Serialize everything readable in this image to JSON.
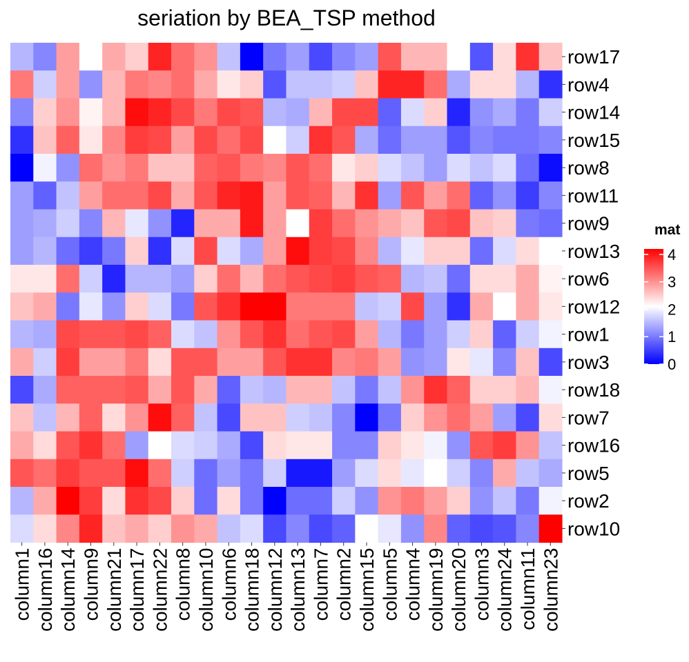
{
  "chart_data": {
    "type": "heatmap",
    "title": "seriation by BEA_TSP method",
    "columns": [
      "column1",
      "column16",
      "column14",
      "column9",
      "column21",
      "column17",
      "column22",
      "column8",
      "column10",
      "column6",
      "column18",
      "column12",
      "column13",
      "column7",
      "column2",
      "column15",
      "column5",
      "column4",
      "column19",
      "column20",
      "column3",
      "column24",
      "column11",
      "column23"
    ],
    "rows": [
      "row17",
      "row4",
      "row14",
      "row15",
      "row8",
      "row11",
      "row9",
      "row13",
      "row6",
      "row12",
      "row1",
      "row3",
      "row18",
      "row7",
      "row16",
      "row5",
      "row2",
      "row10"
    ],
    "values": [
      [
        1.5,
        1.1,
        2.9,
        2.1,
        2.8,
        2.5,
        3.9,
        3.3,
        3.0,
        1.6,
        0.0,
        1.0,
        1.3,
        0.6,
        1.1,
        1.3,
        3.5,
        2.7,
        2.7,
        2.1,
        0.7,
        2.4,
        3.8,
        2.6
      ],
      [
        3.2,
        1.7,
        2.9,
        1.2,
        2.7,
        3.2,
        3.1,
        3.3,
        2.8,
        2.3,
        2.5,
        0.7,
        1.6,
        1.6,
        1.7,
        2.6,
        3.9,
        3.9,
        3.3,
        1.4,
        2.4,
        2.4,
        1.5,
        0.4
      ],
      [
        1.1,
        2.5,
        3.0,
        2.2,
        2.7,
        4.1,
        3.9,
        3.6,
        3.2,
        3.6,
        3.5,
        1.5,
        1.4,
        2.7,
        3.6,
        3.6,
        0.8,
        1.8,
        2.5,
        0.3,
        1.2,
        1.4,
        1.0,
        1.7
      ],
      [
        0.4,
        2.6,
        3.4,
        2.3,
        3.1,
        3.7,
        3.6,
        2.9,
        3.6,
        3.3,
        3.6,
        2.1,
        1.7,
        3.8,
        3.5,
        1.4,
        0.9,
        1.3,
        1.3,
        0.7,
        1.1,
        1.0,
        1.0,
        1.1
      ],
      [
        0.0,
        2.0,
        1.2,
        3.3,
        3.0,
        3.2,
        2.6,
        2.6,
        3.4,
        3.5,
        3.2,
        3.1,
        3.5,
        3.3,
        2.3,
        2.5,
        1.8,
        1.6,
        1.3,
        1.8,
        1.6,
        1.8,
        0.9,
        0.1
      ],
      [
        1.3,
        0.8,
        1.6,
        2.9,
        3.3,
        3.3,
        3.6,
        2.8,
        3.5,
        3.9,
        4.0,
        2.9,
        3.5,
        3.4,
        2.7,
        3.8,
        1.3,
        3.5,
        2.9,
        3.3,
        0.8,
        1.2,
        0.5,
        1.1
      ],
      [
        1.3,
        1.4,
        1.7,
        1.1,
        2.7,
        1.9,
        1.2,
        0.3,
        2.8,
        2.8,
        4.0,
        2.9,
        2.1,
        3.7,
        3.3,
        3.0,
        2.8,
        2.6,
        3.5,
        3.6,
        2.6,
        2.5,
        1.0,
        0.9
      ],
      [
        1.3,
        1.5,
        0.9,
        0.5,
        1.0,
        2.5,
        0.4,
        1.8,
        3.6,
        1.8,
        1.4,
        2.9,
        4.1,
        3.7,
        3.6,
        3.1,
        1.5,
        1.9,
        2.5,
        2.5,
        0.9,
        1.8,
        2.4,
        2.1
      ],
      [
        2.3,
        2.3,
        3.3,
        1.7,
        0.3,
        1.5,
        1.5,
        1.3,
        2.5,
        3.3,
        2.7,
        3.3,
        3.5,
        3.6,
        3.7,
        3.5,
        3.4,
        1.5,
        1.6,
        0.9,
        2.4,
        2.4,
        2.8,
        2.2
      ],
      [
        2.6,
        2.8,
        1.0,
        1.9,
        1.2,
        2.5,
        1.8,
        1.0,
        3.5,
        3.8,
        4.2,
        4.2,
        3.2,
        3.2,
        3.2,
        1.6,
        1.7,
        3.6,
        1.3,
        0.4,
        2.8,
        2.1,
        2.8,
        2.3
      ],
      [
        1.5,
        1.4,
        3.6,
        3.5,
        3.5,
        3.6,
        3.4,
        1.8,
        1.6,
        3.0,
        3.5,
        3.8,
        3.3,
        3.5,
        3.6,
        2.9,
        1.5,
        1.0,
        1.3,
        1.7,
        2.5,
        0.8,
        1.7,
        2.0
      ],
      [
        2.8,
        1.7,
        3.7,
        2.9,
        2.9,
        3.2,
        2.4,
        3.5,
        3.5,
        2.9,
        2.9,
        3.5,
        3.8,
        3.8,
        3.1,
        3.2,
        2.9,
        1.2,
        1.3,
        2.3,
        1.9,
        1.1,
        2.6,
        0.6
      ],
      [
        0.6,
        1.4,
        3.4,
        3.4,
        3.4,
        3.5,
        2.8,
        3.5,
        2.8,
        0.8,
        1.6,
        1.5,
        2.7,
        2.7,
        1.6,
        1.0,
        1.6,
        3.0,
        3.8,
        3.4,
        2.5,
        2.5,
        2.7,
        2.0
      ],
      [
        2.6,
        1.6,
        2.7,
        3.4,
        2.4,
        3.0,
        4.1,
        3.4,
        1.6,
        0.6,
        2.6,
        2.6,
        1.7,
        1.6,
        1.1,
        0.0,
        1.0,
        2.5,
        3.0,
        3.3,
        2.9,
        1.3,
        0.6,
        2.4
      ],
      [
        2.8,
        2.4,
        3.5,
        3.8,
        3.3,
        1.3,
        2.1,
        1.8,
        1.7,
        1.4,
        0.6,
        2.4,
        2.3,
        2.3,
        1.1,
        1.1,
        2.5,
        2.3,
        2.0,
        1.2,
        3.5,
        3.7,
        3.0,
        1.6
      ],
      [
        3.5,
        3.3,
        3.7,
        3.5,
        3.5,
        4.1,
        3.3,
        1.7,
        0.9,
        1.3,
        1.0,
        1.7,
        0.2,
        0.2,
        1.3,
        1.8,
        2.4,
        1.9,
        2.1,
        1.7,
        1.1,
        2.8,
        1.6,
        1.4
      ],
      [
        1.5,
        2.8,
        4.2,
        3.7,
        2.4,
        3.8,
        3.6,
        2.5,
        0.9,
        2.4,
        1.0,
        0.0,
        0.9,
        0.9,
        1.7,
        1.2,
        3.0,
        3.2,
        2.9,
        2.5,
        1.2,
        1.6,
        1.0,
        2.0
      ],
      [
        1.8,
        2.4,
        3.1,
        3.9,
        2.6,
        2.8,
        2.5,
        3.0,
        2.8,
        1.6,
        1.8,
        0.6,
        1.1,
        0.6,
        0.8,
        2.1,
        1.9,
        1.2,
        3.1,
        0.8,
        0.6,
        0.7,
        1.1,
        4.2
      ]
    ],
    "legend": {
      "title": "mat",
      "ticks": [
        0,
        1,
        2,
        3,
        4
      ],
      "position": "right",
      "colors": {
        "low": "#0000FF",
        "mid": "#FFFFFF",
        "high": "#FF0000"
      },
      "range": [
        0,
        4.2
      ],
      "midpoint": 2.1
    },
    "grid": false
  }
}
